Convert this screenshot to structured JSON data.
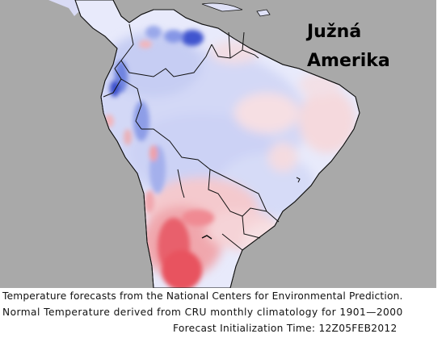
{
  "map": {
    "region_label_line1": "Južná",
    "region_label_line2": "Amerika",
    "colors": {
      "background_ocean": "#a9a9a9",
      "near_normal": "#eef0fb",
      "cooler_light": "#c8cff4",
      "cooler_mid": "#8f9fe8",
      "cooler_strong": "#3447c8",
      "warmer_light": "#f6d3d6",
      "warmer_mid": "#f08f97",
      "warmer_strong": "#e33241",
      "borders": "#111111"
    }
  },
  "caption": {
    "line1": "Temperature forecasts from the National Centers for Environmental Prediction.",
    "line2": "Normal Temperature derived from CRU monthly climatology for 1901—2000",
    "line3": "Forecast Initialization Time: 12Z05FEB2012"
  }
}
